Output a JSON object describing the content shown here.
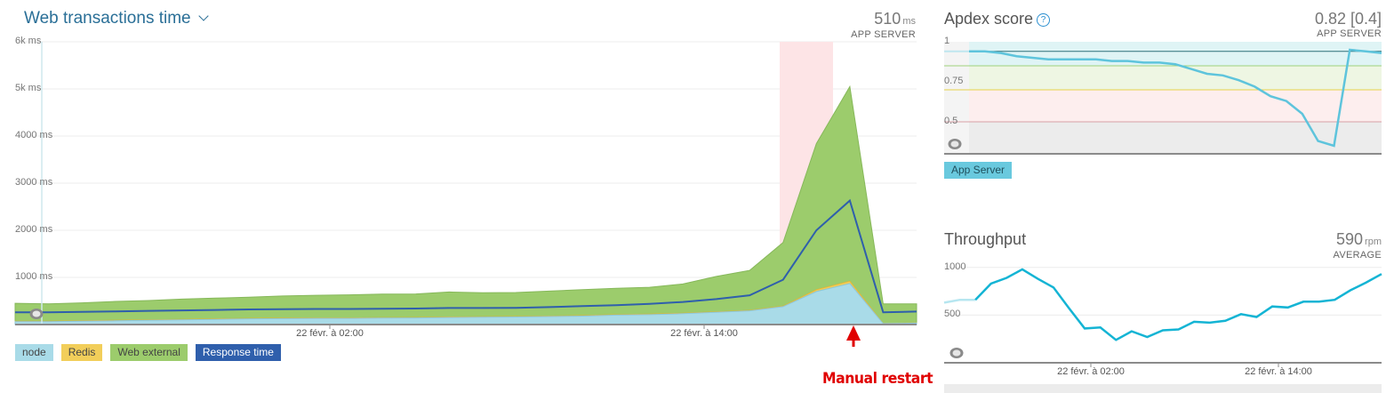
{
  "web_transactions": {
    "title": "Web transactions time",
    "value": "510",
    "unit": "ms",
    "subtitle": "APP SERVER",
    "legend": [
      {
        "label": "node",
        "color": "#a9dbe8"
      },
      {
        "label": "Redis",
        "color": "#f2ce5a"
      },
      {
        "label": "Web external",
        "color": "#9ccc6c"
      },
      {
        "label": "Response time",
        "color": "#2f5fac"
      }
    ]
  },
  "apdex": {
    "title": "Apdex score",
    "value": "0.82 [0.4]",
    "subtitle": "APP SERVER",
    "legend_label": "App Server"
  },
  "throughput": {
    "title": "Throughput",
    "value": "590",
    "unit": "rpm",
    "subtitle": "AVERAGE"
  },
  "annotation": "Manual restart",
  "chart_data": [
    {
      "type": "area",
      "title": "Web transactions time",
      "ylabel_unit": "ms",
      "y_ticks": [
        "1000 ms",
        "2000 ms",
        "3000 ms",
        "4000 ms",
        "5k ms",
        "6k ms"
      ],
      "ylim": [
        0,
        6000
      ],
      "x_ticks": [
        "22 févr. à 02:00",
        "22 févr. à 14:00"
      ],
      "grid": true,
      "legend_position": "bottom-left",
      "x_count": 28,
      "series": [
        {
          "name": "node",
          "values": [
            60,
            60,
            70,
            80,
            90,
            100,
            110,
            120,
            125,
            130,
            130,
            135,
            140,
            150,
            155,
            160,
            170,
            180,
            200,
            210,
            230,
            260,
            290,
            380,
            700,
            870,
            20,
            30
          ]
        },
        {
          "name": "Redis",
          "values": [
            10,
            10,
            10,
            10,
            10,
            10,
            10,
            10,
            10,
            10,
            10,
            10,
            10,
            10,
            10,
            10,
            10,
            10,
            10,
            10,
            10,
            10,
            10,
            10,
            40,
            50,
            5,
            5
          ]
        },
        {
          "name": "Web external",
          "values": [
            380,
            370,
            380,
            400,
            410,
            430,
            440,
            450,
            470,
            480,
            490,
            500,
            500,
            530,
            510,
            510,
            530,
            550,
            560,
            570,
            620,
            750,
            850,
            1350,
            3100,
            4130,
            415,
            405
          ]
        },
        {
          "name": "Response time",
          "values": [
            260,
            260,
            270,
            280,
            290,
            300,
            310,
            320,
            325,
            330,
            330,
            335,
            340,
            350,
            350,
            355,
            370,
            390,
            410,
            440,
            480,
            540,
            620,
            950,
            2000,
            2630,
            260,
            275
          ]
        }
      ]
    },
    {
      "type": "line",
      "title": "Apdex score",
      "y_ticks": [
        "0.5",
        "0.75",
        "1"
      ],
      "thresholds": [
        0.5,
        0.7,
        0.85
      ],
      "series": [
        {
          "name": "App Server",
          "values": [
            0.94,
            0.94,
            0.93,
            0.91,
            0.9,
            0.89,
            0.89,
            0.89,
            0.89,
            0.88,
            0.88,
            0.87,
            0.87,
            0.86,
            0.83,
            0.8,
            0.79,
            0.76,
            0.72,
            0.66,
            0.63,
            0.55,
            0.38,
            0.35,
            0.95,
            0.94,
            0.93
          ]
        }
      ]
    },
    {
      "type": "line",
      "title": "Throughput",
      "y_ticks": [
        "500",
        "1000"
      ],
      "x_ticks": [
        "22 févr. à 02:00",
        "22 févr. à 14:00"
      ],
      "series": [
        {
          "name": "App Server",
          "values": [
            630,
            660,
            660,
            830,
            890,
            980,
            880,
            790,
            570,
            360,
            370,
            240,
            330,
            270,
            340,
            350,
            430,
            420,
            440,
            510,
            480,
            590,
            580,
            640,
            640,
            660,
            760,
            840,
            930
          ]
        }
      ]
    }
  ]
}
